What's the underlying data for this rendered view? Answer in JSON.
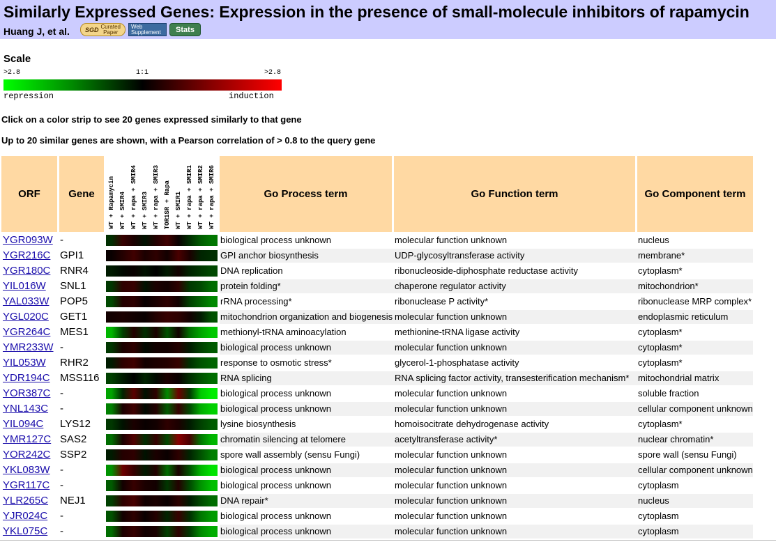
{
  "header": {
    "title": "Similarly Expressed Genes: Expression in the presence of small-molecule inhibitors of rapamycin",
    "authors": "Huang J, et al.",
    "badges": {
      "sgd": "SGD",
      "curated_line1": "Curated",
      "curated_line2": "Paper",
      "web_line1": "Web",
      "web_line2": "Supplement",
      "stats": "Stats"
    }
  },
  "scale": {
    "label": "Scale",
    "left_value": ">2.8",
    "mid_value": "1:1",
    "right_value": ">2.8",
    "left_caption": "repression",
    "right_caption": "induction",
    "colors": [
      "#00ff00",
      "#000000",
      "#ff0000"
    ]
  },
  "instructions": {
    "line1": "Click on a color strip to see 20 genes expressed similarly to that gene",
    "line2": "Up to 20 similar genes are shown, with a Pearson correlation of > 0.8 to the query gene"
  },
  "table": {
    "headers": {
      "orf": "ORF",
      "gene": "Gene",
      "process": "Go Process term",
      "function": "Go Function term",
      "component": "Go Component term"
    },
    "conditions": [
      "WT + Rapamycin",
      "WT + SMIR4",
      "WT + rapa + SMIR4",
      "WT + SMIR3",
      "WT + rapa + SMIR3",
      "TOR1SR + Rapa",
      "WT + SMIR1",
      "WT + rapa + SMIR1",
      "WT + rapa + SMIR2",
      "WT + rapa + SMIR6"
    ],
    "rows": [
      {
        "orf": "YGR093W",
        "gene": "-",
        "process": "biological process unknown",
        "function": "molecular function unknown",
        "component": "nucleus",
        "strip": [
          -0.5,
          0.6,
          0.3,
          -0.2,
          0.4,
          0.7,
          0.1,
          -0.5,
          -1.0,
          -1.3
        ]
      },
      {
        "orf": "YGR216C",
        "gene": "GPI1",
        "process": "GPI anchor biosynthesis",
        "function": "UDP-glycosyltransferase activity",
        "component": "membrane*",
        "strip": [
          0.1,
          0.4,
          0.7,
          0.3,
          0.5,
          0.2,
          0.8,
          0.3,
          -0.4,
          -0.5
        ]
      },
      {
        "orf": "YGR180C",
        "gene": "RNR4",
        "process": "DNA replication",
        "function": "ribonucleoside-diphosphate reductase activity",
        "component": "cytoplasm*",
        "strip": [
          -0.3,
          -0.1,
          0.1,
          -0.2,
          0.0,
          -0.3,
          0.2,
          -0.4,
          -0.6,
          -0.8
        ]
      },
      {
        "orf": "YIL016W",
        "gene": "SNL1",
        "process": "protein folding*",
        "function": "chaperone regulator activity",
        "component": "mitochondrion*",
        "strip": [
          -0.6,
          0.5,
          0.6,
          -0.2,
          0.3,
          0.2,
          0.5,
          -0.6,
          -0.8,
          -1.2
        ]
      },
      {
        "orf": "YAL033W",
        "gene": "POP5",
        "process": "rRNA processing*",
        "function": "ribonuclease P activity*",
        "component": "ribonuclease MRP complex*",
        "strip": [
          -0.8,
          0.4,
          0.5,
          0.1,
          0.3,
          0.5,
          0.2,
          -0.7,
          -1.1,
          -1.5
        ]
      },
      {
        "orf": "YGL020C",
        "gene": "GET1",
        "process": "mitochondrion organization and biogenesis",
        "function": "molecular function unknown",
        "component": "endoplasmic reticulum",
        "strip": [
          0.2,
          0.3,
          0.2,
          0.1,
          0.4,
          0.6,
          0.5,
          0.2,
          -0.3,
          -0.9
        ]
      },
      {
        "orf": "YGR264C",
        "gene": "MES1",
        "process": "methionyl-tRNA aminoacylation",
        "function": "methionine-tRNA ligase activity",
        "component": "cytoplasm*",
        "strip": [
          -2.0,
          -0.7,
          0.4,
          -0.5,
          0.3,
          -0.9,
          0.2,
          -1.2,
          -1.8,
          -2.2
        ]
      },
      {
        "orf": "YMR233W",
        "gene": "-",
        "process": "biological process unknown",
        "function": "molecular function unknown",
        "component": "cytoplasm*",
        "strip": [
          -0.6,
          0.3,
          0.5,
          -0.1,
          0.2,
          0.2,
          0.4,
          -0.3,
          -0.7,
          -1.0
        ]
      },
      {
        "orf": "YIL053W",
        "gene": "RHR2",
        "process": "response to osmotic stress*",
        "function": "glycerol-1-phosphatase activity",
        "component": "cytoplasm*",
        "strip": [
          -0.3,
          0.5,
          0.7,
          0.2,
          0.3,
          0.4,
          0.6,
          -0.5,
          -0.9,
          -1.1
        ]
      },
      {
        "orf": "YDR194C",
        "gene": "MSS116",
        "process": "RNA splicing",
        "function": "RNA splicing factor activity, transesterification mechanism*",
        "component": "mitochondrial matrix",
        "strip": [
          -0.7,
          -0.3,
          0.0,
          -0.4,
          -0.1,
          0.3,
          0.1,
          -0.5,
          -0.9,
          -1.2
        ]
      },
      {
        "orf": "YOR387C",
        "gene": "-",
        "process": "biological process unknown",
        "function": "molecular function unknown",
        "component": "soluble fraction",
        "strip": [
          -1.8,
          -0.4,
          1.0,
          -0.2,
          0.5,
          -1.5,
          1.2,
          -0.6,
          -2.2,
          -2.6
        ]
      },
      {
        "orf": "YNL143C",
        "gene": "-",
        "process": "biological process unknown",
        "function": "molecular function unknown",
        "component": "cellular component unknown",
        "strip": [
          -1.4,
          0.3,
          0.7,
          -0.1,
          0.4,
          -1.0,
          0.6,
          -0.8,
          -1.9,
          -2.3
        ]
      },
      {
        "orf": "YIL094C",
        "gene": "LYS12",
        "process": "lysine biosynthesis",
        "function": "homoisocitrate dehydrogenase activity",
        "component": "cytoplasm*",
        "strip": [
          -0.6,
          -0.2,
          0.3,
          0.1,
          0.2,
          0.5,
          0.3,
          -0.3,
          -0.7,
          -1.0
        ]
      },
      {
        "orf": "YMR127C",
        "gene": "SAS2",
        "process": "chromatin silencing at telomere",
        "function": "acetyltransferase activity*",
        "component": "nuclear chromatin*",
        "strip": [
          -1.2,
          0.3,
          0.9,
          -0.5,
          0.6,
          -0.8,
          1.5,
          0.8,
          -1.3,
          -2.0
        ]
      },
      {
        "orf": "YOR242C",
        "gene": "SSP2",
        "process": "spore wall assembly (sensu Fungi)",
        "function": "molecular function unknown",
        "component": "spore wall (sensu Fungi)",
        "strip": [
          -0.3,
          0.4,
          0.5,
          -0.2,
          0.3,
          0.1,
          0.5,
          -0.4,
          -0.9,
          -1.4
        ]
      },
      {
        "orf": "YKL083W",
        "gene": "-",
        "process": "biological process unknown",
        "function": "molecular function unknown",
        "component": "cellular component unknown",
        "strip": [
          -1.6,
          1.2,
          0.6,
          -0.3,
          0.4,
          -1.2,
          0.3,
          -0.9,
          -2.0,
          -2.5
        ]
      },
      {
        "orf": "YGR117C",
        "gene": "-",
        "process": "biological process unknown",
        "function": "molecular function unknown",
        "component": "cytoplasm",
        "strip": [
          -1.0,
          0.2,
          0.6,
          0.3,
          0.2,
          -0.6,
          0.4,
          -0.8,
          -1.6,
          -2.1
        ]
      },
      {
        "orf": "YLR265C",
        "gene": "NEJ1",
        "process": "DNA repair*",
        "function": "molecular function unknown",
        "component": "nucleus",
        "strip": [
          -0.7,
          0.5,
          0.8,
          0.2,
          0.3,
          0.1,
          0.5,
          -0.3,
          -0.8,
          -1.2
        ]
      },
      {
        "orf": "YJR024C",
        "gene": "-",
        "process": "biological process unknown",
        "function": "molecular function unknown",
        "component": "cytoplasm",
        "strip": [
          -0.9,
          0.2,
          0.5,
          0.1,
          0.4,
          -0.4,
          0.6,
          -0.5,
          -1.3,
          -1.7
        ]
      },
      {
        "orf": "YKL075C",
        "gene": "-",
        "process": "biological process unknown",
        "function": "molecular function unknown",
        "component": "cytoplasm",
        "strip": [
          -1.2,
          0.3,
          0.6,
          0.2,
          0.3,
          -0.7,
          0.5,
          -0.6,
          -1.5,
          -1.9
        ]
      }
    ]
  }
}
